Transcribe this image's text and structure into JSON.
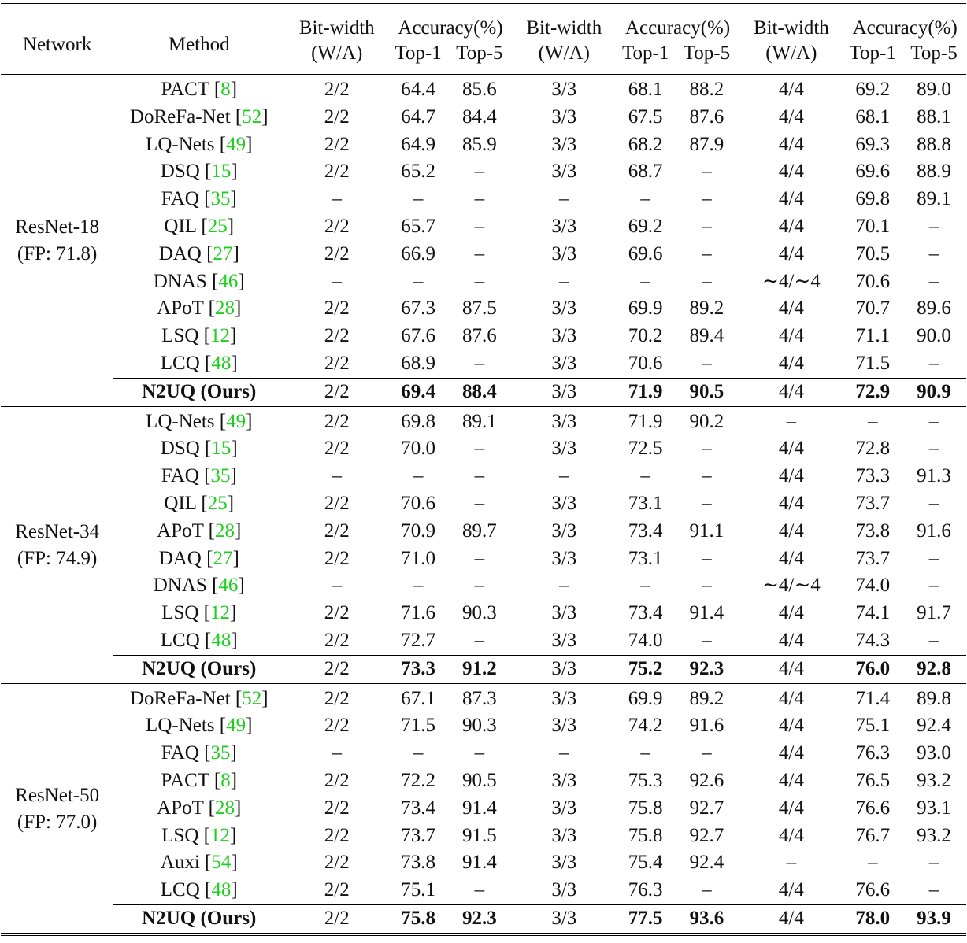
{
  "header": {
    "network": "Network",
    "method": "Method",
    "bitwidth_line1": "Bit-width",
    "bitwidth_line2": "(W/A)",
    "accuracy": "Accuracy(%)",
    "top1": "Top-1",
    "top5": "Top-5"
  },
  "groups": [
    {
      "network": "ResNet-18",
      "fp": "(FP: 71.8)",
      "rows": [
        {
          "name": "PACT",
          "ref": "8",
          "c2": [
            "2/2",
            "64.4",
            "85.6"
          ],
          "c3": [
            "3/3",
            "68.1",
            "88.2"
          ],
          "c4": [
            "4/4",
            "69.2",
            "89.0"
          ]
        },
        {
          "name": "DoReFa-Net",
          "ref": "52",
          "c2": [
            "2/2",
            "64.7",
            "84.4"
          ],
          "c3": [
            "3/3",
            "67.5",
            "87.6"
          ],
          "c4": [
            "4/4",
            "68.1",
            "88.1"
          ]
        },
        {
          "name": "LQ-Nets",
          "ref": "49",
          "c2": [
            "2/2",
            "64.9",
            "85.9"
          ],
          "c3": [
            "3/3",
            "68.2",
            "87.9"
          ],
          "c4": [
            "4/4",
            "69.3",
            "88.8"
          ]
        },
        {
          "name": "DSQ",
          "ref": "15",
          "c2": [
            "2/2",
            "65.2",
            "–"
          ],
          "c3": [
            "3/3",
            "68.7",
            "–"
          ],
          "c4": [
            "4/4",
            "69.6",
            "88.9"
          ]
        },
        {
          "name": "FAQ",
          "ref": "35",
          "c2": [
            "–",
            "–",
            "–"
          ],
          "c3": [
            "–",
            "–",
            "–"
          ],
          "c4": [
            "4/4",
            "69.8",
            "89.1"
          ]
        },
        {
          "name": "QIL",
          "ref": "25",
          "c2": [
            "2/2",
            "65.7",
            "–"
          ],
          "c3": [
            "3/3",
            "69.2",
            "–"
          ],
          "c4": [
            "4/4",
            "70.1",
            "–"
          ]
        },
        {
          "name": "DAQ",
          "ref": "27",
          "c2": [
            "2/2",
            "66.9",
            "–"
          ],
          "c3": [
            "3/3",
            "69.6",
            "–"
          ],
          "c4": [
            "4/4",
            "70.5",
            "–"
          ]
        },
        {
          "name": "DNAS",
          "ref": "46",
          "c2": [
            "–",
            "–",
            "–"
          ],
          "c3": [
            "–",
            "–",
            "–"
          ],
          "c4": [
            "∼4/∼4",
            "70.6",
            "–"
          ]
        },
        {
          "name": "APoT",
          "ref": "28",
          "c2": [
            "2/2",
            "67.3",
            "87.5"
          ],
          "c3": [
            "3/3",
            "69.9",
            "89.2"
          ],
          "c4": [
            "4/4",
            "70.7",
            "89.6"
          ]
        },
        {
          "name": "LSQ",
          "ref": "12",
          "c2": [
            "2/2",
            "67.6",
            "87.6"
          ],
          "c3": [
            "3/3",
            "70.2",
            "89.4"
          ],
          "c4": [
            "4/4",
            "71.1",
            "90.0"
          ]
        },
        {
          "name": "LCQ",
          "ref": "48",
          "c2": [
            "2/2",
            "68.9",
            "–"
          ],
          "c3": [
            "3/3",
            "70.6",
            "–"
          ],
          "c4": [
            "4/4",
            "71.5",
            "–"
          ]
        }
      ],
      "ours": {
        "name": "N2UQ (Ours)",
        "c2": [
          "2/2",
          "69.4",
          "88.4"
        ],
        "c3": [
          "3/3",
          "71.9",
          "90.5"
        ],
        "c4": [
          "4/4",
          "72.9",
          "90.9"
        ]
      }
    },
    {
      "network": "ResNet-34",
      "fp": "(FP: 74.9)",
      "rows": [
        {
          "name": "LQ-Nets",
          "ref": "49",
          "c2": [
            "2/2",
            "69.8",
            "89.1"
          ],
          "c3": [
            "3/3",
            "71.9",
            "90.2"
          ],
          "c4": [
            "–",
            "–",
            "–"
          ]
        },
        {
          "name": "DSQ",
          "ref": "15",
          "c2": [
            "2/2",
            "70.0",
            "–"
          ],
          "c3": [
            "3/3",
            "72.5",
            "–"
          ],
          "c4": [
            "4/4",
            "72.8",
            "–"
          ]
        },
        {
          "name": "FAQ",
          "ref": "35",
          "c2": [
            "–",
            "–",
            "–"
          ],
          "c3": [
            "–",
            "–",
            "–"
          ],
          "c4": [
            "4/4",
            "73.3",
            "91.3"
          ]
        },
        {
          "name": "QIL",
          "ref": "25",
          "c2": [
            "2/2",
            "70.6",
            "–"
          ],
          "c3": [
            "3/3",
            "73.1",
            "–"
          ],
          "c4": [
            "4/4",
            "73.7",
            "–"
          ]
        },
        {
          "name": "APoT",
          "ref": "28",
          "c2": [
            "2/2",
            "70.9",
            "89.7"
          ],
          "c3": [
            "3/3",
            "73.4",
            "91.1"
          ],
          "c4": [
            "4/4",
            "73.8",
            "91.6"
          ]
        },
        {
          "name": "DAQ",
          "ref": "27",
          "c2": [
            "2/2",
            "71.0",
            "–"
          ],
          "c3": [
            "3/3",
            "73.1",
            "–"
          ],
          "c4": [
            "4/4",
            "73.7",
            "–"
          ]
        },
        {
          "name": "DNAS",
          "ref": "46",
          "c2": [
            "–",
            "–",
            "–"
          ],
          "c3": [
            "–",
            "–",
            "–"
          ],
          "c4": [
            "∼4/∼4",
            "74.0",
            "–"
          ]
        },
        {
          "name": "LSQ",
          "ref": "12",
          "c2": [
            "2/2",
            "71.6",
            "90.3"
          ],
          "c3": [
            "3/3",
            "73.4",
            "91.4"
          ],
          "c4": [
            "4/4",
            "74.1",
            "91.7"
          ]
        },
        {
          "name": "LCQ",
          "ref": "48",
          "c2": [
            "2/2",
            "72.7",
            "–"
          ],
          "c3": [
            "3/3",
            "74.0",
            "–"
          ],
          "c4": [
            "4/4",
            "74.3",
            "–"
          ]
        }
      ],
      "ours": {
        "name": "N2UQ (Ours)",
        "c2": [
          "2/2",
          "73.3",
          "91.2"
        ],
        "c3": [
          "3/3",
          "75.2",
          "92.3"
        ],
        "c4": [
          "4/4",
          "76.0",
          "92.8"
        ]
      }
    },
    {
      "network": "ResNet-50",
      "fp": "(FP: 77.0)",
      "rows": [
        {
          "name": "DoReFa-Net",
          "ref": "52",
          "c2": [
            "2/2",
            "67.1",
            "87.3"
          ],
          "c3": [
            "3/3",
            "69.9",
            "89.2"
          ],
          "c4": [
            "4/4",
            "71.4",
            "89.8"
          ]
        },
        {
          "name": "LQ-Nets",
          "ref": "49",
          "c2": [
            "2/2",
            "71.5",
            "90.3"
          ],
          "c3": [
            "3/3",
            "74.2",
            "91.6"
          ],
          "c4": [
            "4/4",
            "75.1",
            "92.4"
          ]
        },
        {
          "name": "FAQ",
          "ref": "35",
          "c2": [
            "–",
            "–",
            "–"
          ],
          "c3": [
            "–",
            "–",
            "–"
          ],
          "c4": [
            "4/4",
            "76.3",
            "93.0"
          ]
        },
        {
          "name": "PACT",
          "ref": "8",
          "c2": [
            "2/2",
            "72.2",
            "90.5"
          ],
          "c3": [
            "3/3",
            "75.3",
            "92.6"
          ],
          "c4": [
            "4/4",
            "76.5",
            "93.2"
          ]
        },
        {
          "name": "APoT",
          "ref": "28",
          "c2": [
            "2/2",
            "73.4",
            "91.4"
          ],
          "c3": [
            "3/3",
            "75.8",
            "92.7"
          ],
          "c4": [
            "4/4",
            "76.6",
            "93.1"
          ]
        },
        {
          "name": "LSQ",
          "ref": "12",
          "c2": [
            "2/2",
            "73.7",
            "91.5"
          ],
          "c3": [
            "3/3",
            "75.8",
            "92.7"
          ],
          "c4": [
            "4/4",
            "76.7",
            "93.2"
          ]
        },
        {
          "name": "Auxi",
          "ref": "54",
          "c2": [
            "2/2",
            "73.8",
            "91.4"
          ],
          "c3": [
            "3/3",
            "75.4",
            "92.4"
          ],
          "c4": [
            "–",
            "–",
            "–"
          ]
        },
        {
          "name": "LCQ",
          "ref": "48",
          "c2": [
            "2/2",
            "75.1",
            "–"
          ],
          "c3": [
            "3/3",
            "76.3",
            "–"
          ],
          "c4": [
            "4/4",
            "76.6",
            "–"
          ]
        }
      ],
      "ours": {
        "name": "N2UQ (Ours)",
        "c2": [
          "2/2",
          "75.8",
          "92.3"
        ],
        "c3": [
          "3/3",
          "77.5",
          "93.6"
        ],
        "c4": [
          "4/4",
          "78.0",
          "93.9"
        ]
      }
    }
  ],
  "colors": {
    "citation": "#1fcf1f",
    "text": "#111111",
    "rule": "#000000"
  }
}
